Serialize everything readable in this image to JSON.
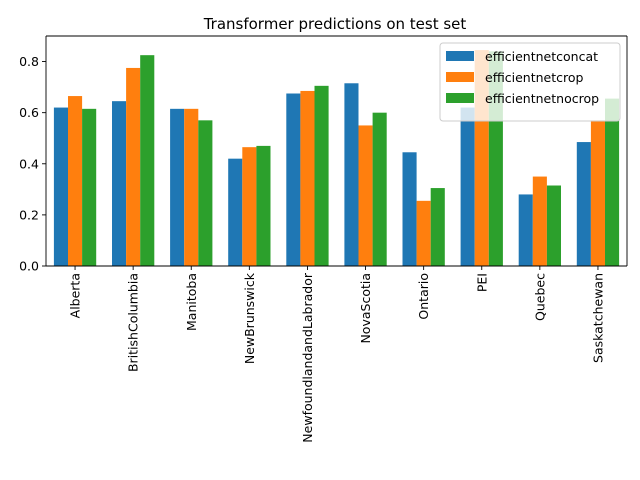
{
  "chart_data": {
    "type": "bar",
    "title": "Transformer predictions on test set",
    "xlabel": "",
    "ylabel": "",
    "categories": [
      "Alberta",
      "BritishColumbia",
      "Manitoba",
      "NewBrunswick",
      "NewfoundlandandLabrador",
      "NovaScotia",
      "Ontario",
      "PEI",
      "Quebec",
      "Saskatchewan"
    ],
    "series": [
      {
        "name": "efficientnetconcat",
        "color": "#1f77b4",
        "values": [
          0.62,
          0.645,
          0.615,
          0.42,
          0.675,
          0.715,
          0.445,
          0.62,
          0.28,
          0.485
        ]
      },
      {
        "name": "efficientnetcrop",
        "color": "#ff7f0e",
        "values": [
          0.665,
          0.775,
          0.615,
          0.465,
          0.685,
          0.55,
          0.255,
          0.845,
          0.35,
          0.57
        ]
      },
      {
        "name": "efficientnetnocrop",
        "color": "#2ca02c",
        "values": [
          0.615,
          0.825,
          0.57,
          0.47,
          0.705,
          0.6,
          0.305,
          0.84,
          0.315,
          0.655
        ]
      }
    ],
    "ylim": [
      0,
      0.9
    ],
    "yticks": [
      "0.0",
      "0.2",
      "0.4",
      "0.6",
      "0.8"
    ],
    "ytick_values": [
      0,
      0.2,
      0.4,
      0.6,
      0.8
    ],
    "grid": false,
    "legend_position": "top-right"
  }
}
